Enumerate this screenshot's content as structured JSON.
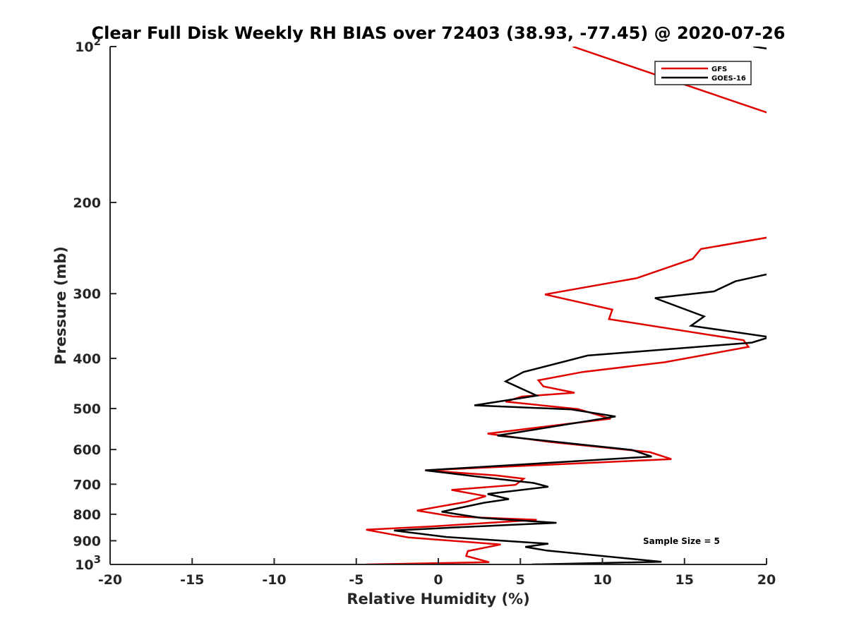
{
  "chart_data": {
    "type": "line",
    "title": "Clear Full Disk Weekly RH BIAS over 72403 (38.93, -77.45) @ 2020-07-26",
    "xlabel": "Relative Humidity (%)",
    "ylabel": "Pressure (mb)",
    "xlim": [
      -20,
      20
    ],
    "ylim": [
      100,
      1000
    ],
    "yscale": "log",
    "y_reversed": true,
    "x_ticks": [
      -20,
      -15,
      -10,
      -5,
      0,
      5,
      10,
      15,
      20
    ],
    "y_ticks": [
      {
        "value": 100,
        "base": "10",
        "exp": "2"
      },
      {
        "value": 200,
        "label": "200"
      },
      {
        "value": 300,
        "label": "300"
      },
      {
        "value": 400,
        "label": "400"
      },
      {
        "value": 500,
        "label": "500"
      },
      {
        "value": 600,
        "label": "600"
      },
      {
        "value": 700,
        "label": "700"
      },
      {
        "value": 800,
        "label": "800"
      },
      {
        "value": 900,
        "label": "900"
      },
      {
        "value": 1000,
        "base": "10",
        "exp": "3"
      }
    ],
    "grid": false,
    "legend_position": "top-right",
    "series": [
      {
        "name": "GFS",
        "color": "#e00000",
        "points": [
          [
            8.2,
            100
          ],
          [
            20.3,
            135
          ],
          [
            20.3,
            233
          ],
          [
            16.0,
            246
          ],
          [
            15.5,
            257
          ],
          [
            12.1,
            280
          ],
          [
            6.5,
            301
          ],
          [
            10.6,
            322
          ],
          [
            10.4,
            336
          ],
          [
            18.6,
            369
          ],
          [
            18.9,
            380
          ],
          [
            13.8,
            407
          ],
          [
            8.8,
            425
          ],
          [
            6.1,
            441
          ],
          [
            6.4,
            453
          ],
          [
            8.3,
            466
          ],
          [
            5.1,
            474
          ],
          [
            4.1,
            485
          ],
          [
            8.5,
            501
          ],
          [
            10.5,
            523
          ],
          [
            3.0,
            559
          ],
          [
            6.8,
            580
          ],
          [
            12.9,
            607
          ],
          [
            14.2,
            626
          ],
          [
            -0.8,
            658
          ],
          [
            3.5,
            673
          ],
          [
            5.2,
            683
          ],
          [
            4.7,
            702
          ],
          [
            0.8,
            718
          ],
          [
            2.9,
            738
          ],
          [
            1.7,
            757
          ],
          [
            -1.3,
            787
          ],
          [
            0.9,
            808
          ],
          [
            6.0,
            820
          ],
          [
            -0.5,
            845
          ],
          [
            -4.4,
            857
          ],
          [
            -1.8,
            887
          ],
          [
            3.8,
            915
          ],
          [
            1.8,
            942
          ],
          [
            1.7,
            963
          ],
          [
            3.1,
            990
          ],
          [
            -4.4,
            1000
          ]
        ]
      },
      {
        "name": "GOES-16",
        "color": "#000000",
        "points": [
          [
            19.2,
            100
          ],
          [
            20.3,
            101.2
          ],
          [
            20.3,
            274
          ],
          [
            18.1,
            284
          ],
          [
            16.8,
            297
          ],
          [
            13.2,
            306
          ],
          [
            16.2,
            332
          ],
          [
            15.4,
            346
          ],
          [
            20.2,
            364
          ],
          [
            19.1,
            373
          ],
          [
            9.1,
            395
          ],
          [
            5.2,
            425
          ],
          [
            4.1,
            443
          ],
          [
            6.0,
            472
          ],
          [
            2.2,
            493
          ],
          [
            8.1,
            502
          ],
          [
            10.8,
            518
          ],
          [
            3.6,
            564
          ],
          [
            11.8,
            601
          ],
          [
            13.0,
            619
          ],
          [
            -0.8,
            658
          ],
          [
            2.6,
            678
          ],
          [
            5.8,
            696
          ],
          [
            6.7,
            708
          ],
          [
            3.0,
            731
          ],
          [
            4.3,
            748
          ],
          [
            2.8,
            760
          ],
          [
            0.2,
            791
          ],
          [
            2.6,
            813
          ],
          [
            7.2,
            831
          ],
          [
            0.8,
            849
          ],
          [
            -2.7,
            860
          ],
          [
            0.5,
            885
          ],
          [
            6.7,
            912
          ],
          [
            5.3,
            925
          ],
          [
            6.6,
            940
          ],
          [
            13.6,
            988
          ],
          [
            5.7,
            1000
          ]
        ]
      }
    ],
    "annotation": "Sample Size = 5"
  }
}
